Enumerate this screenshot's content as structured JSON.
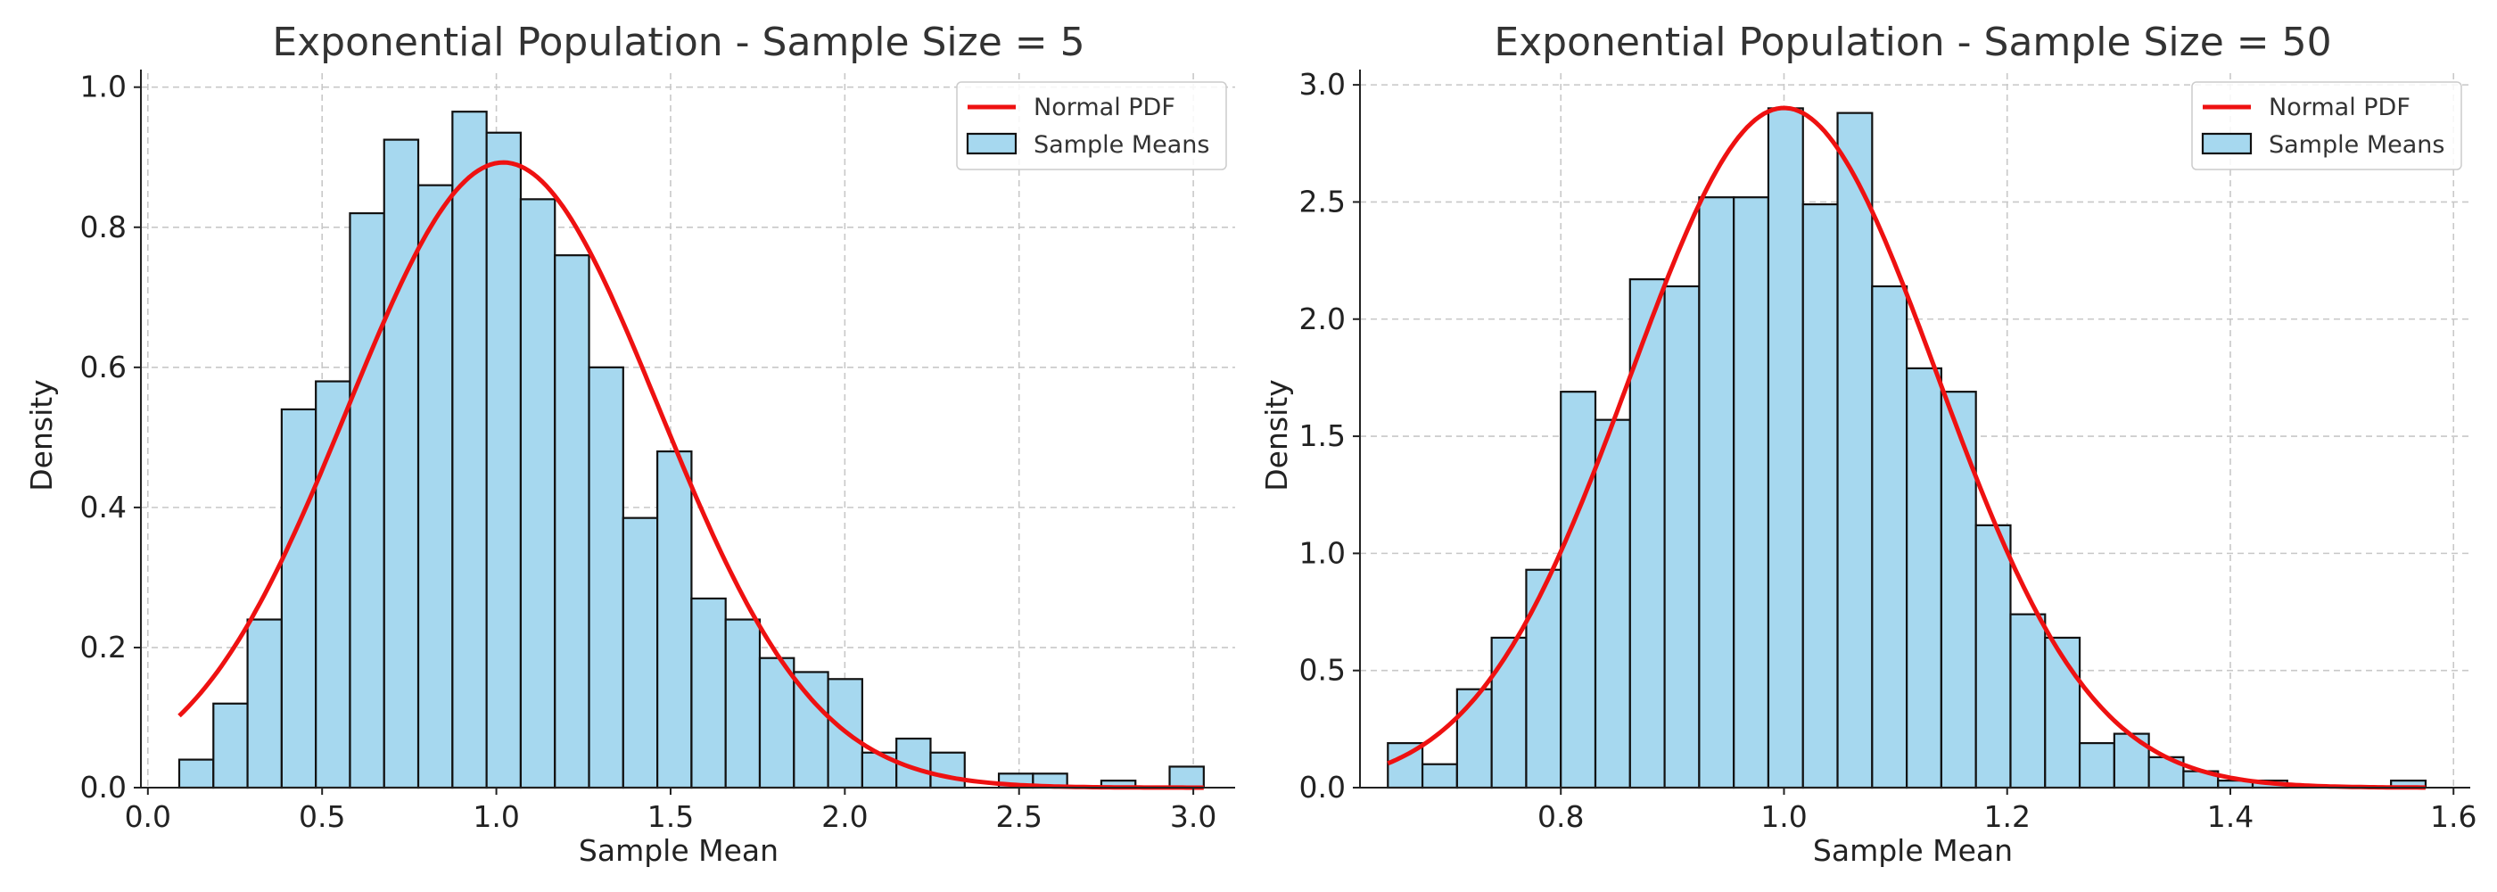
{
  "chart_data": [
    {
      "type": "bar",
      "title": "Exponential Population - Sample Size = 5",
      "xlabel": "Sample Mean",
      "ylabel": "Density",
      "xlim": [
        -0.02,
        3.12
      ],
      "ylim": [
        0,
        1.02
      ],
      "xticks": [
        0.0,
        0.5,
        1.0,
        1.5,
        2.0,
        2.5,
        3.0
      ],
      "xtick_labels": [
        "0.0",
        "0.5",
        "1.0",
        "1.5",
        "2.0",
        "2.5",
        "3.0"
      ],
      "yticks": [
        0.0,
        0.2,
        0.4,
        0.6,
        0.8,
        1.0
      ],
      "ytick_labels": [
        "0.0",
        "0.2",
        "0.4",
        "0.6",
        "0.8",
        "1.0"
      ],
      "grid": true,
      "legend": {
        "placement": "top-right",
        "entries": [
          "Normal PDF",
          "Sample Means"
        ]
      },
      "bin_edges": [
        0.09,
        0.188,
        0.286,
        0.384,
        0.482,
        0.58,
        0.678,
        0.776,
        0.874,
        0.972,
        1.07,
        1.168,
        1.266,
        1.364,
        1.462,
        1.56,
        1.658,
        1.756,
        1.854,
        1.952,
        2.05,
        2.148,
        2.246,
        2.344,
        2.442,
        2.54,
        2.638,
        2.736,
        2.834,
        2.932,
        3.03
      ],
      "series": [
        {
          "name": "Sample Means",
          "type": "histogram",
          "color": "#a6d8ef",
          "values": [
            0.04,
            0.12,
            0.24,
            0.54,
            0.58,
            0.82,
            0.925,
            0.86,
            0.965,
            0.935,
            0.84,
            0.76,
            0.6,
            0.385,
            0.48,
            0.27,
            0.24,
            0.185,
            0.165,
            0.155,
            0.05,
            0.07,
            0.05,
            0.0,
            0.02,
            0.02,
            0.0,
            0.01,
            0.0,
            0.03
          ]
        },
        {
          "name": "Normal PDF",
          "type": "line",
          "color": "#ee1111",
          "mean": 1.02,
          "std": 0.447,
          "x_range": [
            0.09,
            3.03
          ]
        }
      ]
    },
    {
      "type": "bar",
      "title": "Exponential Population - Sample Size = 50",
      "xlabel": "Sample Mean",
      "ylabel": "Density",
      "xlim": [
        0.62,
        1.615
      ],
      "ylim": [
        0,
        3.05
      ],
      "xticks": [
        0.8,
        1.0,
        1.2,
        1.4,
        1.6
      ],
      "xtick_labels": [
        "0.8",
        "1.0",
        "1.2",
        "1.4",
        "1.6"
      ],
      "yticks": [
        0.0,
        0.5,
        1.0,
        1.5,
        2.0,
        2.5,
        3.0
      ],
      "ytick_labels": [
        "0.0",
        "0.5",
        "1.0",
        "1.5",
        "2.0",
        "2.5",
        "3.0"
      ],
      "grid": true,
      "legend": {
        "placement": "top-right",
        "entries": [
          "Normal PDF",
          "Sample Means"
        ]
      },
      "bin_edges": [
        0.645,
        0.676,
        0.707,
        0.738,
        0.769,
        0.8,
        0.831,
        0.862,
        0.893,
        0.924,
        0.955,
        0.986,
        1.017,
        1.048,
        1.079,
        1.11,
        1.141,
        1.172,
        1.203,
        1.234,
        1.265,
        1.296,
        1.327,
        1.358,
        1.389,
        1.42,
        1.451,
        1.482,
        1.513,
        1.544,
        1.575
      ],
      "series": [
        {
          "name": "Sample Means",
          "type": "histogram",
          "color": "#a6d8ef",
          "values": [
            0.19,
            0.1,
            0.42,
            0.64,
            0.93,
            1.69,
            1.57,
            2.17,
            2.14,
            2.52,
            2.52,
            2.9,
            2.49,
            2.88,
            2.14,
            1.79,
            1.69,
            1.12,
            0.74,
            0.64,
            0.19,
            0.23,
            0.13,
            0.07,
            0.03,
            0.03,
            0.0,
            0.0,
            0.0,
            0.03
          ]
        },
        {
          "name": "Normal PDF",
          "type": "line",
          "color": "#ee1111",
          "mean": 1.0,
          "std": 0.1375,
          "x_range": [
            0.645,
            1.575
          ]
        }
      ]
    }
  ]
}
